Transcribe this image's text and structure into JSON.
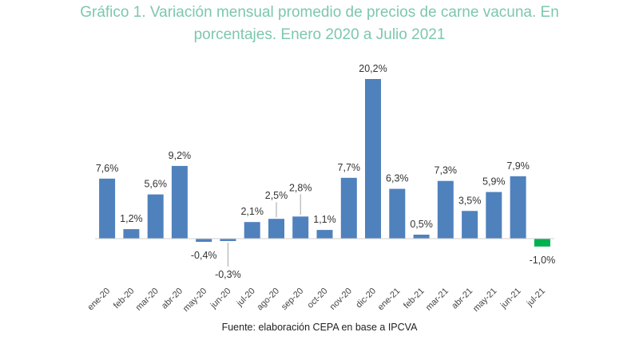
{
  "chart_data": {
    "type": "bar",
    "title_lines": [
      "Gráfico 1. Variación mensual promedio de precios de carne vacuna. En",
      "porcentajes. Enero 2020 a Julio 2021"
    ],
    "source": "Fuente: elaboración CEPA en base a IPCVA",
    "categories": [
      "ene-20",
      "feb-20",
      "mar-20",
      "abr-20",
      "may-20",
      "jun-20",
      "jul-20",
      "ago-20",
      "sep-20",
      "oct-20",
      "nov-20",
      "dic-20",
      "ene-21",
      "feb-21",
      "mar-21",
      "abr-21",
      "may-21",
      "jun-21",
      "jul-21"
    ],
    "values": [
      7.6,
      1.2,
      5.6,
      9.2,
      -0.4,
      -0.3,
      2.1,
      2.5,
      2.8,
      1.1,
      7.7,
      20.2,
      6.3,
      0.5,
      7.3,
      3.5,
      5.9,
      7.9,
      -1.0
    ],
    "labels": [
      "7,6%",
      "1,2%",
      "5,6%",
      "9,2%",
      "-0,4%",
      "-0,3%",
      "2,1%",
      "2,5%",
      "2,8%",
      "1,1%",
      "7,7%",
      "20,2%",
      "6,3%",
      "0,5%",
      "7,3%",
      "3,5%",
      "5,9%",
      "7,9%",
      "-1,0%"
    ],
    "unit": "%",
    "ylim": [
      -1.0,
      20.2
    ],
    "grid": false,
    "colors": {
      "default": "#4f81bd",
      "highlight": "#00b050",
      "title": "#7cc7b0"
    },
    "highlight_index": 18
  }
}
